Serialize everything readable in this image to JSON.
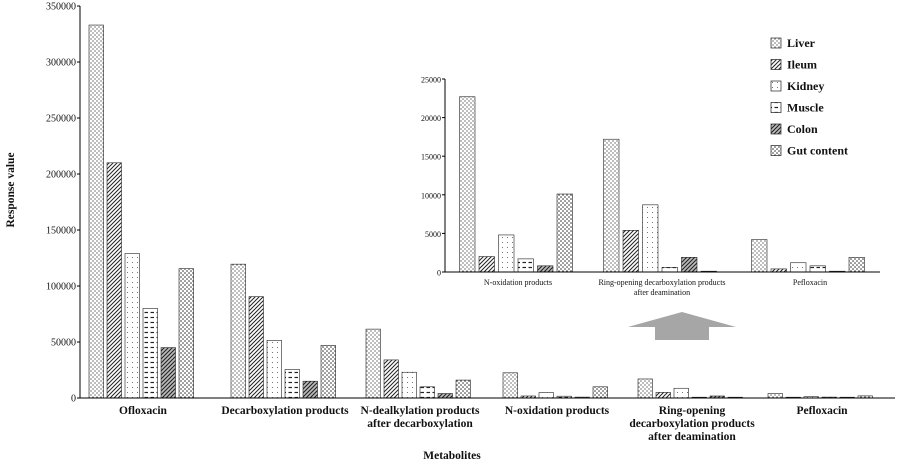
{
  "chart_data": [
    {
      "type": "bar",
      "xlabel": "Metabolites",
      "ylabel": "Response value",
      "ylim": [
        0,
        350000
      ],
      "yticks": [
        "0",
        "50000",
        "100000",
        "150000",
        "200000",
        "250000",
        "300000",
        "350000"
      ],
      "categories": [
        [
          "Ofloxacin"
        ],
        [
          "Decarboxylation products"
        ],
        [
          "N-dealkylation products",
          "after decarboxylation"
        ],
        [
          "N-oxidation products"
        ],
        [
          "Ring-opening",
          "decarboxylation products",
          "after deamination"
        ],
        [
          "Pefloxacin"
        ]
      ],
      "series": [
        {
          "name": "Liver",
          "values": [
            333000,
            119500,
            61500,
            22500,
            17000,
            4000
          ]
        },
        {
          "name": "Ileum",
          "values": [
            210000,
            90500,
            34000,
            1800,
            5000,
            400
          ]
        },
        {
          "name": "Kidney",
          "values": [
            129000,
            51500,
            23000,
            4800,
            8700,
            1200
          ]
        },
        {
          "name": "Muscle",
          "values": [
            80000,
            25500,
            10000,
            1600,
            600,
            800
          ]
        },
        {
          "name": "Colon",
          "values": [
            45000,
            15000,
            4000,
            800,
            1800,
            100
          ]
        },
        {
          "name": "Gut content",
          "values": [
            115500,
            47000,
            16000,
            10000,
            100,
            1900
          ]
        }
      ]
    },
    {
      "type": "bar",
      "title": "",
      "ylim": [
        0,
        25000
      ],
      "yticks": [
        "0",
        "5000",
        "10000",
        "15000",
        "20000",
        "25000"
      ],
      "categories": [
        [
          "N-oxidation products"
        ],
        [
          "Ring-opening decarboxylation products",
          "after deamination"
        ],
        [
          "Pefloxacin"
        ]
      ],
      "series": [
        {
          "name": "Liver",
          "values": [
            22700,
            17200,
            4200
          ]
        },
        {
          "name": "Ileum",
          "values": [
            2000,
            5400,
            400
          ]
        },
        {
          "name": "Kidney",
          "values": [
            4800,
            8700,
            1200
          ]
        },
        {
          "name": "Muscle",
          "values": [
            1700,
            600,
            800
          ]
        },
        {
          "name": "Colon",
          "values": [
            800,
            1900,
            100
          ]
        },
        {
          "name": "Gut content",
          "values": [
            10100,
            100,
            1900
          ]
        }
      ]
    }
  ],
  "legend": [
    "Liver",
    "Ileum",
    "Kidney",
    "Muscle",
    "Colon",
    "Gut content"
  ]
}
